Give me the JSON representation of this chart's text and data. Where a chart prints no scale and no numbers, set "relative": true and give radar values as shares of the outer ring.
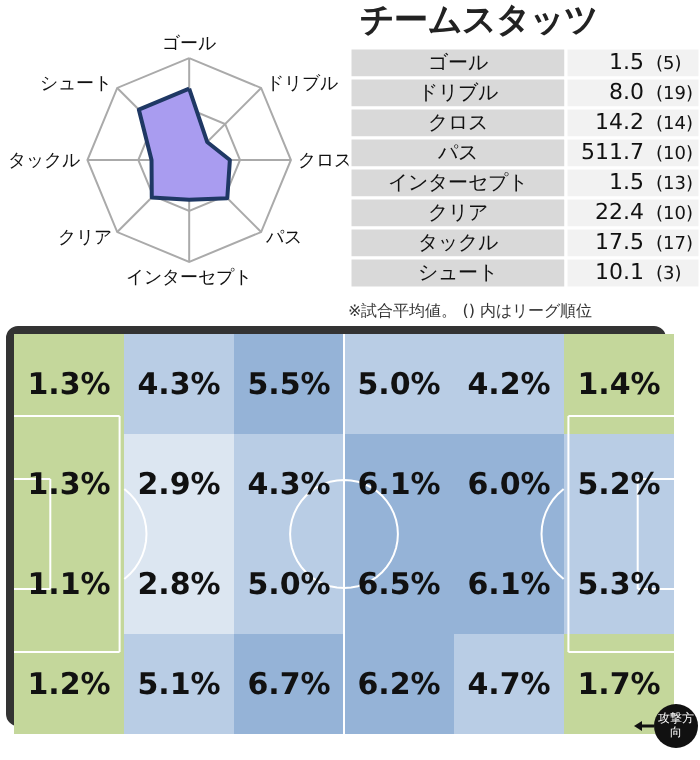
{
  "chart_data": [
    {
      "type": "radar",
      "relative": true,
      "grid": true,
      "categories": [
        "ゴール",
        "ドリブル",
        "クロス",
        "パス",
        "インターセプト",
        "クリア",
        "タックル",
        "シュート"
      ],
      "series": [
        {
          "color": "#a99cf0",
          "values": [
            0.7,
            0.25,
            0.4,
            0.53,
            0.39,
            0.52,
            0.37,
            0.7
          ]
        }
      ]
    },
    {
      "type": "other",
      "title": "チームスタッツ",
      "categories": [
        "ゴール",
        "ドリブル",
        "クロス",
        "パス",
        "インターセプト",
        "クリア",
        "タックル",
        "シュート"
      ],
      "series": [
        {
          "values": [
            1.5,
            8.0,
            14.2,
            511.7,
            1.5,
            22.4,
            17.5,
            10.1
          ],
          "value_labels": [
            "1.5",
            "8.0",
            "14.2",
            "511.7",
            "1.5",
            "22.4",
            "17.5",
            "10.1"
          ]
        },
        {
          "values": [
            5,
            19,
            14,
            10,
            13,
            10,
            17,
            3
          ],
          "value_labels": [
            "(5)",
            "(19)",
            "(14)",
            "(10)",
            "(13)",
            "(10)",
            "(17)",
            "(3)"
          ]
        }
      ],
      "annotations": [
        "※試合平均値。 () 内はリーグ順位"
      ]
    },
    {
      "type": "heatmap",
      "categories": [
        null,
        null,
        null,
        null,
        null,
        null
      ],
      "y_categories": [
        null,
        null,
        null,
        null
      ],
      "cells": [
        [
          1.3,
          4.3,
          5.5,
          5.0,
          4.2,
          1.4
        ],
        [
          1.3,
          2.9,
          4.3,
          6.1,
          6.0,
          5.2
        ],
        [
          1.1,
          2.8,
          5.0,
          6.5,
          6.1,
          5.3
        ],
        [
          1.2,
          5.1,
          6.7,
          6.2,
          4.7,
          1.7
        ]
      ],
      "cell_labels": [
        [
          "1.3%",
          "4.3%",
          "5.5%",
          "5.0%",
          "4.2%",
          "1.4%"
        ],
        [
          "1.3%",
          "2.9%",
          "4.3%",
          "6.1%",
          "6.0%",
          "5.2%"
        ],
        [
          "1.1%",
          "2.8%",
          "5.0%",
          "6.5%",
          "6.1%",
          "5.3%"
        ],
        [
          "1.2%",
          "5.1%",
          "6.7%",
          "6.2%",
          "4.7%",
          "1.7%"
        ]
      ],
      "colors": [
        [
          "#c4d79b",
          "#b9cde5",
          "#95b3d7",
          "#b9cde5",
          "#b9cde5",
          "#c4d79b"
        ],
        [
          "#c4d79b",
          "#dce6f1",
          "#b9cde5",
          "#95b3d7",
          "#95b3d7",
          "#b9cde5"
        ],
        [
          "#c4d79b",
          "#dce6f1",
          "#b9cde5",
          "#95b3d7",
          "#95b3d7",
          "#b9cde5"
        ],
        [
          "#c4d79b",
          "#b9cde5",
          "#95b3d7",
          "#95b3d7",
          "#b9cde5",
          "#c4d79b"
        ]
      ],
      "annotations": [
        "攻撃方向"
      ]
    }
  ]
}
